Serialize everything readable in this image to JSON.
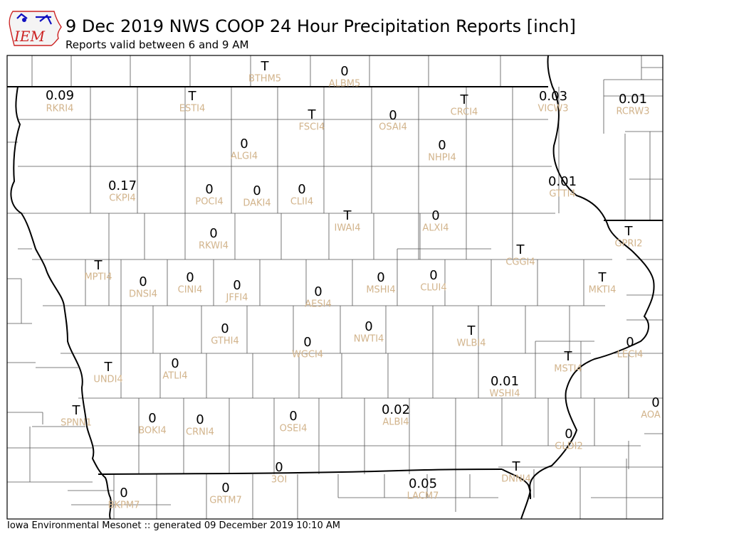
{
  "title": "9 Dec 2019 NWS COOP 24 Hour Precipitation Reports [inch]",
  "subtitle": "Reports valid between 6 and 9 AM",
  "footer": "Iowa Environmental Mesonet :: generated 09 December 2019 10:10 AM",
  "logo": {
    "text": "IEM",
    "icon": "iowa-state-outline-icon",
    "accent": "#cc2222",
    "outline": "#1010c0"
  },
  "colors": {
    "value": "#000000",
    "station_id": "#d2b48c",
    "county_line": "#555555",
    "border": "#000000"
  },
  "stations": [
    {
      "id": "BTHM5",
      "value": "T"
    },
    {
      "id": "ALBM5",
      "value": "0"
    },
    {
      "id": "RKRI4",
      "value": "0.09"
    },
    {
      "id": "ESTI4",
      "value": "T"
    },
    {
      "id": "FSCI4",
      "value": "T"
    },
    {
      "id": "OSAI4",
      "value": "0"
    },
    {
      "id": "CRCI4",
      "value": "T"
    },
    {
      "id": "VICW3",
      "value": "0.03"
    },
    {
      "id": "RCRW3",
      "value": "0.01"
    },
    {
      "id": "ALGI4",
      "value": "0"
    },
    {
      "id": "NHPI4",
      "value": "0"
    },
    {
      "id": "CKPI4",
      "value": "0.17"
    },
    {
      "id": "POCI4",
      "value": "0"
    },
    {
      "id": "DAKI4",
      "value": "0"
    },
    {
      "id": "CLII4",
      "value": "0"
    },
    {
      "id": "GTTI4",
      "value": "0.01"
    },
    {
      "id": "IWAI4",
      "value": "T"
    },
    {
      "id": "ALXI4",
      "value": "0"
    },
    {
      "id": "RKWI4",
      "value": "0"
    },
    {
      "id": "GPRI2",
      "value": "T"
    },
    {
      "id": "CGGI4",
      "value": "T"
    },
    {
      "id": "MPTI4",
      "value": "T"
    },
    {
      "id": "DNSI4",
      "value": "0"
    },
    {
      "id": "CINI4",
      "value": "0"
    },
    {
      "id": "JFFI4",
      "value": "0"
    },
    {
      "id": "AESI4",
      "value": "0"
    },
    {
      "id": "MSHI4",
      "value": "0"
    },
    {
      "id": "CLUI4",
      "value": "0"
    },
    {
      "id": "MKTI4",
      "value": "T"
    },
    {
      "id": "GTHI4",
      "value": "0"
    },
    {
      "id": "NWTI4",
      "value": "0"
    },
    {
      "id": "WLBI4",
      "value": "T"
    },
    {
      "id": "LECI4",
      "value": "0"
    },
    {
      "id": "WGCI4",
      "value": "0"
    },
    {
      "id": "UNDI4",
      "value": "T"
    },
    {
      "id": "ATLI4",
      "value": "0"
    },
    {
      "id": "MSTI4",
      "value": "T"
    },
    {
      "id": "WSHI4",
      "value": "0.01"
    },
    {
      "id": "SPNN1",
      "value": "T"
    },
    {
      "id": "BOKI4",
      "value": "0"
    },
    {
      "id": "CRNI4",
      "value": "0"
    },
    {
      "id": "OSEI4",
      "value": "0"
    },
    {
      "id": "ALBI4",
      "value": "0.02"
    },
    {
      "id": "AOAI2",
      "label": "AOA",
      "value": "0"
    },
    {
      "id": "GLDI2",
      "value": "0"
    },
    {
      "id": "3OI",
      "value": "0"
    },
    {
      "id": "DNNI4",
      "value": "T"
    },
    {
      "id": "LACM7",
      "value": "0.05"
    },
    {
      "id": "BKPM7",
      "value": "0"
    },
    {
      "id": "GRTM7",
      "value": "0"
    }
  ]
}
